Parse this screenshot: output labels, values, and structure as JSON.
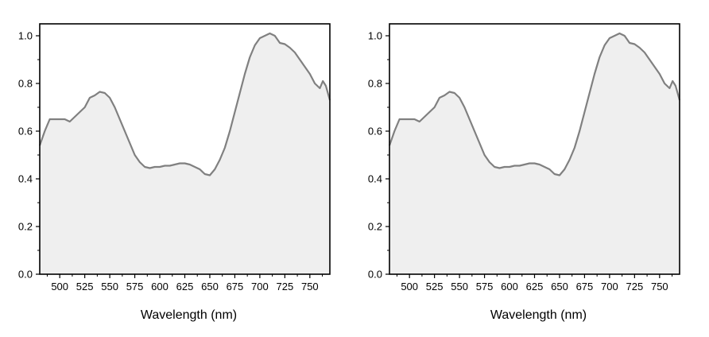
{
  "chart_data": [
    {
      "type": "area",
      "title": "",
      "xlabel": "Wavelength (nm)",
      "ylabel": "",
      "xlim": [
        480,
        770
      ],
      "ylim": [
        0.0,
        1.05
      ],
      "xticks": [
        500,
        525,
        550,
        575,
        600,
        625,
        650,
        675,
        700,
        725,
        750
      ],
      "xtick_labels": [
        "500",
        "525",
        "550",
        "575",
        "600",
        "625",
        "650",
        "675",
        "700",
        "725",
        "750"
      ],
      "yticks": [
        0.0,
        0.2,
        0.4,
        0.6,
        0.8,
        1.0
      ],
      "ytick_labels": [
        "0.0",
        "0.2",
        "0.4",
        "0.6",
        "0.8",
        "1.0"
      ],
      "grid": false,
      "legend": "none",
      "line_color": "#808080",
      "fill_color": "#efefef",
      "x": [
        480,
        485,
        490,
        495,
        500,
        505,
        510,
        515,
        520,
        525,
        530,
        535,
        540,
        545,
        550,
        555,
        560,
        565,
        570,
        575,
        580,
        585,
        590,
        595,
        600,
        605,
        610,
        615,
        620,
        625,
        630,
        635,
        640,
        645,
        650,
        655,
        660,
        665,
        670,
        675,
        680,
        685,
        690,
        695,
        700,
        705,
        710,
        715,
        720,
        725,
        730,
        735,
        740,
        745,
        750,
        755,
        760,
        763,
        766,
        770
      ],
      "y": [
        0.54,
        0.6,
        0.65,
        0.65,
        0.65,
        0.65,
        0.64,
        0.66,
        0.68,
        0.7,
        0.74,
        0.75,
        0.765,
        0.76,
        0.74,
        0.7,
        0.65,
        0.6,
        0.55,
        0.5,
        0.47,
        0.45,
        0.445,
        0.45,
        0.45,
        0.455,
        0.455,
        0.46,
        0.465,
        0.465,
        0.46,
        0.45,
        0.44,
        0.42,
        0.415,
        0.44,
        0.48,
        0.53,
        0.6,
        0.68,
        0.76,
        0.84,
        0.91,
        0.96,
        0.99,
        1.0,
        1.01,
        1.0,
        0.97,
        0.965,
        0.95,
        0.93,
        0.9,
        0.87,
        0.84,
        0.8,
        0.78,
        0.81,
        0.79,
        0.73
      ]
    },
    {
      "type": "area",
      "title": "",
      "xlabel": "Wavelength (nm)",
      "ylabel": "",
      "xlim": [
        480,
        770
      ],
      "ylim": [
        0.0,
        1.05
      ],
      "xticks": [
        500,
        525,
        550,
        575,
        600,
        625,
        650,
        675,
        700,
        725,
        750
      ],
      "xtick_labels": [
        "500",
        "525",
        "550",
        "575",
        "600",
        "625",
        "650",
        "675",
        "700",
        "725",
        "750"
      ],
      "yticks": [
        0.0,
        0.2,
        0.4,
        0.6,
        0.8,
        1.0
      ],
      "ytick_labels": [
        "0.0",
        "0.2",
        "0.4",
        "0.6",
        "0.8",
        "1.0"
      ],
      "grid": false,
      "legend": "none",
      "line_color": "#808080",
      "fill_color": "#efefef",
      "x": [
        480,
        485,
        490,
        495,
        500,
        505,
        510,
        515,
        520,
        525,
        530,
        535,
        540,
        545,
        550,
        555,
        560,
        565,
        570,
        575,
        580,
        585,
        590,
        595,
        600,
        605,
        610,
        615,
        620,
        625,
        630,
        635,
        640,
        645,
        650,
        655,
        660,
        665,
        670,
        675,
        680,
        685,
        690,
        695,
        700,
        705,
        710,
        715,
        720,
        725,
        730,
        735,
        740,
        745,
        750,
        755,
        760,
        763,
        766,
        770
      ],
      "y": [
        0.54,
        0.6,
        0.65,
        0.65,
        0.65,
        0.65,
        0.64,
        0.66,
        0.68,
        0.7,
        0.74,
        0.75,
        0.765,
        0.76,
        0.74,
        0.7,
        0.65,
        0.6,
        0.55,
        0.5,
        0.47,
        0.45,
        0.445,
        0.45,
        0.45,
        0.455,
        0.455,
        0.46,
        0.465,
        0.465,
        0.46,
        0.45,
        0.44,
        0.42,
        0.415,
        0.44,
        0.48,
        0.53,
        0.6,
        0.68,
        0.76,
        0.84,
        0.91,
        0.96,
        0.99,
        1.0,
        1.01,
        1.0,
        0.97,
        0.965,
        0.95,
        0.93,
        0.9,
        0.87,
        0.84,
        0.8,
        0.78,
        0.81,
        0.79,
        0.73
      ]
    }
  ]
}
